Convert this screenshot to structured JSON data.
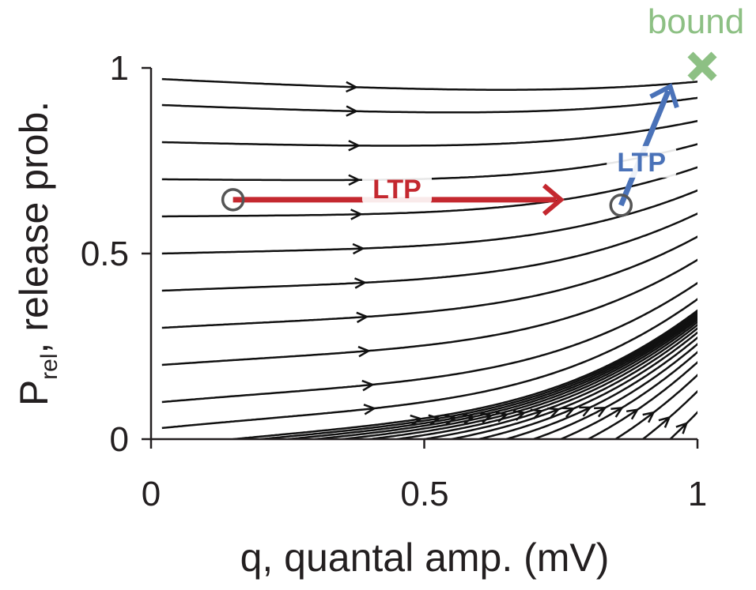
{
  "chart_data": {
    "type": "streamplot",
    "title": "",
    "xlabel": "q, quantal amp. (mV)",
    "ylabel_main": "P",
    "ylabel_sub": "rel",
    "ylabel_rest": ", release prob.",
    "xlim": [
      0,
      1
    ],
    "ylim": [
      0,
      1
    ],
    "xticks": [
      0,
      0.5,
      1
    ],
    "xtick_labels": [
      "0",
      "0.5",
      "1"
    ],
    "yticks": [
      0,
      0.5,
      1
    ],
    "ytick_labels": [
      "0",
      "0.5",
      "1"
    ],
    "flow_field": {
      "description": "stream lines flowing toward upper-right corner",
      "attractor": [
        1,
        1
      ],
      "stream_start_x": [
        0.02,
        0.04,
        0.06,
        0.08,
        0.1,
        0.15,
        0.2,
        0.25,
        0.3,
        0.35,
        0.4,
        0.45,
        0.5,
        0.55,
        0.6,
        0.65,
        0.7,
        0.75,
        0.8,
        0.85,
        0.9,
        0.95
      ],
      "stream_start_y_left": [
        0.03,
        0.1,
        0.2,
        0.3,
        0.4,
        0.5,
        0.6,
        0.7,
        0.8,
        0.9,
        0.97
      ]
    },
    "annotations": [
      {
        "label": "LTP",
        "color": "#c4282f",
        "start": [
          0.15,
          0.645
        ],
        "end": [
          0.75,
          0.645
        ]
      },
      {
        "label": "LTP",
        "color": "#4a72b8",
        "start": [
          0.86,
          0.63
        ],
        "end": [
          0.95,
          0.95
        ]
      }
    ],
    "bound_marker": {
      "label": "bound",
      "color": "#8dc084",
      "x": 1.0,
      "y": 1.0
    }
  }
}
